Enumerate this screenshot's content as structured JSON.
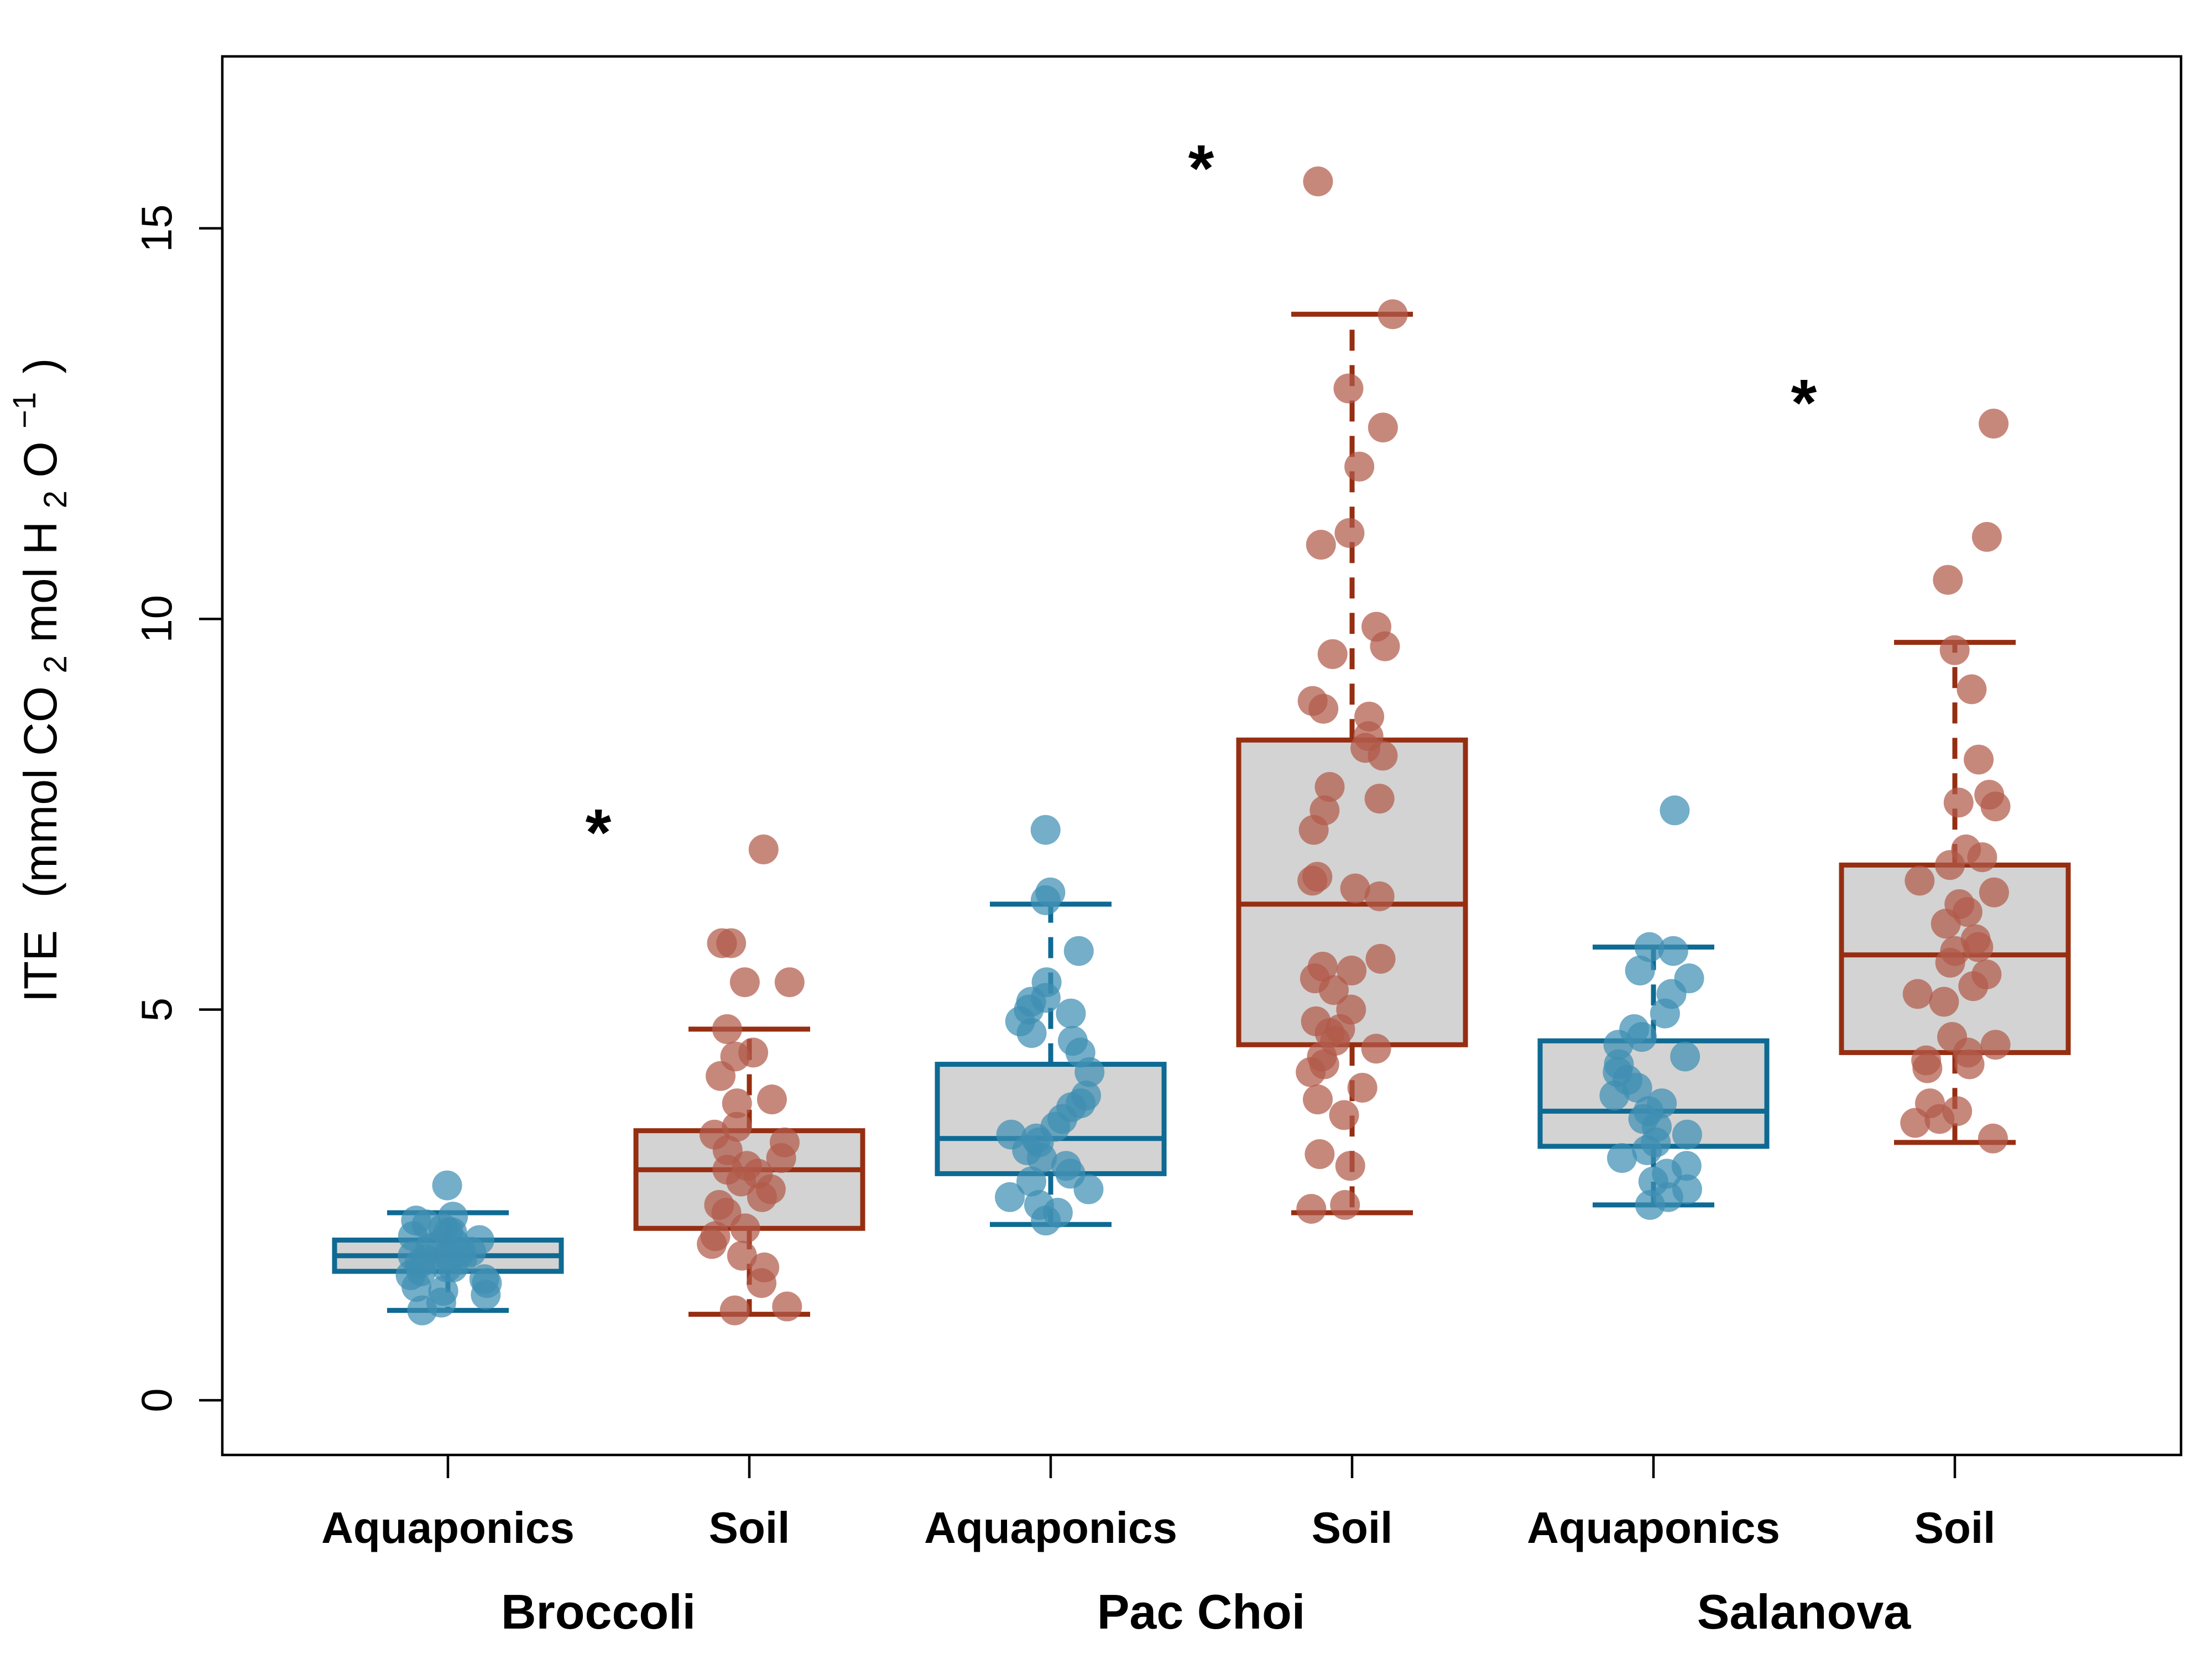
{
  "chart_data": {
    "type": "box",
    "title": "",
    "xlabel": "",
    "ylabel": {
      "main": "ITE",
      "open": "(mmol CO",
      "sub1": "2",
      "mid": " mol H",
      "sub2": "2",
      "o": "O",
      "sup": "−1",
      "close": ")"
    },
    "ylim": [
      -0.7,
      17.2
    ],
    "yticks": [
      0,
      5,
      10,
      15
    ],
    "ytick_labels": [
      "0",
      "5",
      "10",
      "15"
    ],
    "categories": [
      "Aquaponics",
      "Soil",
      "Aquaponics",
      "Soil",
      "Aquaponics",
      "Soil"
    ],
    "groups": [
      {
        "label": "Broccoli",
        "significance": "*",
        "sig_y": 7.4
      },
      {
        "label": "Pac Choi",
        "significance": "*",
        "sig_y": 15.9
      },
      {
        "label": "Salanova",
        "significance": "*",
        "sig_y": 12.9
      }
    ],
    "colors": {
      "Aquaponics": "#0e6a93",
      "Soil": "#962e12",
      "Aquaponics_points": "#3f8fb3",
      "Soil_points": "#b15a4a",
      "box_fill": "#d3d3d3"
    },
    "boxes": [
      {
        "group": "Broccoli",
        "system": "Aquaponics",
        "whisker_low": 1.15,
        "q1": 1.65,
        "median": 1.85,
        "q3": 2.05,
        "whisker_high": 2.4,
        "points": [
          2.75,
          2.35,
          2.3,
          2.25,
          2.2,
          2.15,
          2.1,
          2.05,
          2.0,
          2.0,
          1.95,
          1.9,
          1.9,
          1.85,
          1.85,
          1.8,
          1.8,
          1.75,
          1.7,
          1.7,
          1.65,
          1.6,
          1.55,
          1.5,
          1.45,
          1.4,
          1.35,
          1.15,
          1.25,
          2.15
        ]
      },
      {
        "group": "Broccoli",
        "system": "Soil",
        "whisker_low": 1.1,
        "q1": 2.2,
        "median": 2.95,
        "q3": 3.45,
        "whisker_high": 4.75,
        "points": [
          7.05,
          5.85,
          5.85,
          5.35,
          5.35,
          4.75,
          4.45,
          4.4,
          4.15,
          3.85,
          3.8,
          3.5,
          3.4,
          3.3,
          3.2,
          3.1,
          3.0,
          2.95,
          2.9,
          2.8,
          2.7,
          2.6,
          2.5,
          2.4,
          2.2,
          2.1,
          2.0,
          1.85,
          1.7,
          1.5,
          1.2,
          1.15
        ]
      },
      {
        "group": "Pac Choi",
        "system": "Aquaponics",
        "whisker_low": 2.25,
        "q1": 2.9,
        "median": 3.35,
        "q3": 4.3,
        "whisker_high": 6.35,
        "points": [
          7.3,
          6.5,
          6.4,
          5.75,
          5.35,
          5.15,
          5.1,
          5.0,
          4.95,
          4.85,
          4.7,
          4.6,
          4.45,
          4.2,
          3.9,
          3.8,
          3.75,
          3.6,
          3.5,
          3.4,
          3.35,
          3.3,
          3.2,
          3.1,
          3.0,
          2.9,
          2.8,
          2.7,
          2.6,
          2.5,
          2.4,
          2.3
        ]
      },
      {
        "group": "Pac Choi",
        "system": "Soil",
        "whisker_low": 2.4,
        "q1": 4.55,
        "median": 6.35,
        "q3": 8.45,
        "whisker_high": 13.9,
        "points": [
          15.6,
          13.9,
          12.95,
          12.45,
          11.95,
          11.1,
          10.95,
          9.9,
          9.65,
          9.55,
          8.95,
          8.85,
          8.75,
          8.5,
          8.35,
          8.25,
          7.85,
          7.7,
          7.55,
          7.3,
          6.7,
          6.65,
          6.55,
          6.45,
          5.65,
          5.55,
          5.5,
          5.4,
          5.25,
          5.0,
          4.85,
          4.75,
          4.7,
          4.6,
          4.5,
          4.4,
          4.3,
          4.2,
          4.0,
          3.85,
          3.65,
          3.15,
          3.0,
          2.5,
          2.45
        ]
      },
      {
        "group": "Salanova",
        "system": "Aquaponics",
        "whisker_low": 2.5,
        "q1": 3.25,
        "median": 3.7,
        "q3": 4.6,
        "whisker_high": 5.8,
        "points": [
          7.55,
          5.8,
          5.75,
          5.5,
          5.4,
          5.2,
          4.95,
          4.75,
          4.65,
          4.55,
          4.4,
          4.3,
          4.2,
          4.1,
          4.0,
          3.9,
          3.8,
          3.7,
          3.6,
          3.5,
          3.4,
          3.3,
          3.2,
          3.1,
          3.0,
          2.9,
          2.8,
          2.7,
          2.6,
          2.5
        ]
      },
      {
        "group": "Salanova",
        "system": "Soil",
        "whisker_low": 3.3,
        "q1": 4.45,
        "median": 5.7,
        "q3": 6.85,
        "whisker_high": 9.7,
        "points": [
          12.5,
          11.05,
          10.5,
          9.6,
          9.1,
          8.2,
          7.75,
          7.65,
          7.6,
          7.05,
          6.95,
          6.85,
          6.65,
          6.5,
          6.35,
          6.25,
          6.1,
          5.9,
          5.8,
          5.75,
          5.6,
          5.45,
          5.3,
          5.2,
          5.1,
          4.65,
          4.55,
          4.45,
          4.35,
          4.3,
          4.25,
          3.8,
          3.7,
          3.6,
          3.55,
          3.35
        ]
      }
    ]
  }
}
